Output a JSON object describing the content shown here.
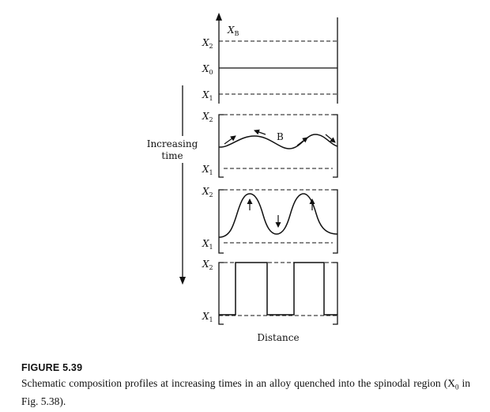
{
  "diagram": {
    "axis_top_label": {
      "main": "X",
      "sub": "B"
    },
    "levels": {
      "x2": {
        "main": "X",
        "sub": "2"
      },
      "x0": {
        "main": "X",
        "sub": "0"
      },
      "x1": {
        "main": "X",
        "sub": "1"
      }
    },
    "time_label_lines": [
      "Increasing",
      "time"
    ],
    "phase_label": "B",
    "x_axis_label": "Distance"
  },
  "caption": {
    "figure_number": "FIGURE 5.39",
    "text_before_sub": "Schematic composition profiles at increasing times in an alloy quenched into the spinodal region (X",
    "text_sub": "0",
    "text_after_sub": " in Fig. 5.38)."
  }
}
